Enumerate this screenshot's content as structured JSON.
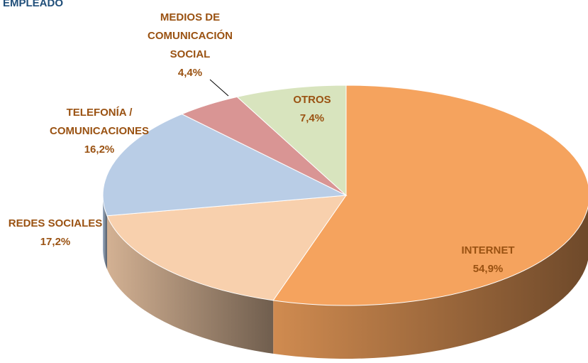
{
  "chart_data": {
    "type": "pie",
    "title": "EMPLEADO",
    "categories": [
      "INTERNET",
      "REDES SOCIALES",
      "TELEFONÍA / COMUNICACIONES",
      "MEDIOS DE COMUNICACIÓN SOCIAL",
      "OTROS"
    ],
    "values": [
      54.9,
      17.2,
      16.2,
      4.4,
      7.4
    ],
    "value_labels": [
      "54,9%",
      "17,2%",
      "16,2%",
      "4,4%",
      "7,4%"
    ],
    "colors": [
      "#f5a35e",
      "#f8d0ad",
      "#b9cde6",
      "#d99594",
      "#d8e4be"
    ]
  }
}
